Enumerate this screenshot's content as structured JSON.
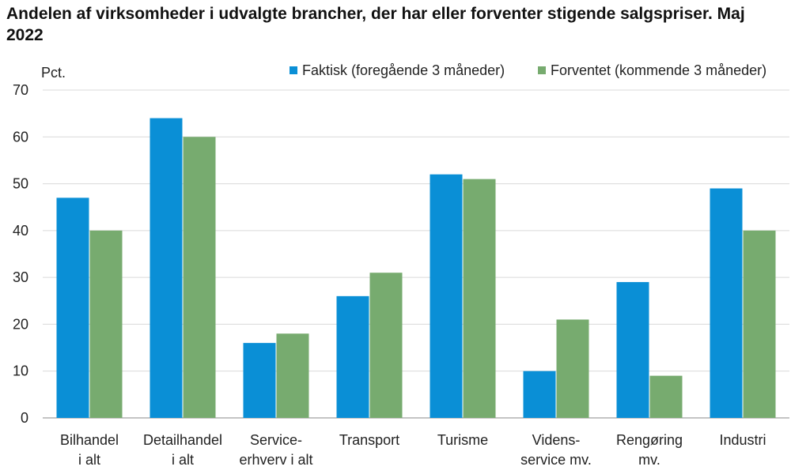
{
  "chart_data": {
    "type": "bar",
    "title": "Andelen af virksomheder i udvalgte brancher, der har eller forventer stigende salgspriser. Maj 2022",
    "ylabel": "Pct.",
    "xlabel": "",
    "ylim": [
      0,
      70
    ],
    "yticks": [
      0,
      10,
      20,
      30,
      40,
      50,
      60,
      70
    ],
    "grid": true,
    "legend_position": "top-right",
    "categories": [
      [
        "Bilhandel",
        "i alt"
      ],
      [
        "Detailhandel",
        "i alt"
      ],
      [
        "Service-",
        "erhverv i alt"
      ],
      [
        "Transport"
      ],
      [
        "Turisme"
      ],
      [
        "Videns-",
        "service mv."
      ],
      [
        "Rengøring",
        "mv."
      ],
      [
        "Industri"
      ]
    ],
    "series": [
      {
        "name": "Faktisk (foregående 3 måneder)",
        "color": "#0a8fd6",
        "values": [
          47,
          64,
          16,
          26,
          52,
          10,
          29,
          49
        ]
      },
      {
        "name": "Forventet (kommende 3 måneder)",
        "color": "#77ab6f",
        "values": [
          40,
          60,
          18,
          31,
          51,
          21,
          9,
          40
        ]
      }
    ]
  }
}
